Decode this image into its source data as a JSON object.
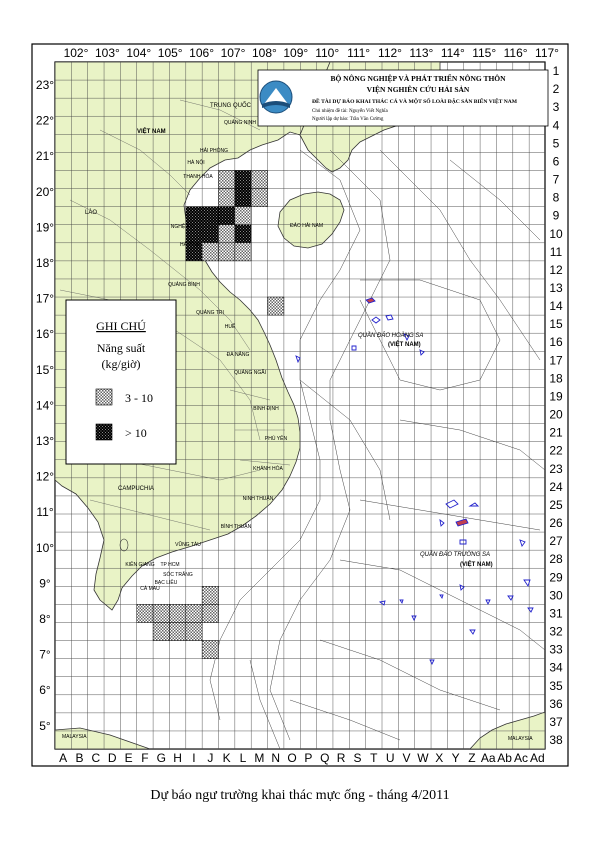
{
  "longitude_labels": [
    "102°",
    "103°",
    "104°",
    "105°",
    "106°",
    "107°",
    "108°",
    "109°",
    "110°",
    "111°",
    "112°",
    "113°",
    "114°",
    "115°",
    "116°",
    "117°"
  ],
  "latitude_labels": [
    "23°",
    "22°",
    "21°",
    "20°",
    "19°",
    "18°",
    "17°",
    "16°",
    "15°",
    "14°",
    "13°",
    "12°",
    "11°",
    "10°",
    "9°",
    "8°",
    "7°",
    "6°",
    "5°"
  ],
  "row_labels": [
    "1",
    "2",
    "3",
    "4",
    "5",
    "6",
    "7",
    "8",
    "9",
    "10",
    "11",
    "12",
    "13",
    "14",
    "15",
    "16",
    "17",
    "18",
    "19",
    "20",
    "21",
    "22",
    "23",
    "24",
    "25",
    "26",
    "27",
    "28",
    "29",
    "30",
    "31",
    "32",
    "33",
    "34",
    "35",
    "36",
    "37",
    "38"
  ],
  "column_labels": [
    "A",
    "B",
    "C",
    "D",
    "E",
    "F",
    "G",
    "H",
    "I",
    "J",
    "K",
    "L",
    "M",
    "N",
    "O",
    "P",
    "Q",
    "R",
    "S",
    "T",
    "U",
    "V",
    "W",
    "X",
    "Y",
    "Z",
    "Aa",
    "Ab",
    "Ac",
    "Ad"
  ],
  "header": {
    "ministry": "BỘ NÔNG NGHIỆP VÀ PHÁT TRIỂN NÔNG THÔN",
    "institute": "VIỆN NGHIÊN CỨU HẢI SẢN",
    "project": "ĐỀ TÀI DỰ BÁO KHAI THÁC CÁ VÀ MỘT SỐ LOÀI ĐẶC SẢN BIỂN VIỆT NAM",
    "chair": "Chủ nhiệm đề tài: Nguyễn Viết Nghĩa",
    "editor": "Người lập dự báo: Trần Văn Cường"
  },
  "legend": {
    "title": "GHI CHÚ",
    "subtitle_line1": "Năng suất",
    "subtitle_line2": "(kg/giờ)",
    "items": [
      {
        "label": "3 - 10",
        "level": "medium"
      },
      {
        "label": "> 10",
        "level": "high"
      }
    ]
  },
  "place_labels": {
    "china": "TRUNG QUỐC",
    "vietnam": "VIỆT NAM",
    "laos": "LÀO",
    "cambodia": "CAMPUCHIA",
    "hainan": "ĐẢO HẢI NAM",
    "paracels": "QUẦN ĐẢO HOÀNG SA",
    "paracels_country": "(VIỆT NAM)",
    "spratlys": "QUẦN ĐẢO TRƯỜNG SA",
    "spratlys_country": "(VIỆT NAM)",
    "malaysia_left": "MALAYSIA",
    "malaysia_right": "MALAYSIA"
  },
  "province_labels": [
    "HÀ NỘI",
    "THANH HÓA",
    "NGHỆ AN",
    "HÀ TĨNH",
    "QUẢNG BÌNH",
    "QUẢNG TRỊ",
    "HUẾ",
    "ĐÀ NẴNG",
    "QUẢNG NGÃI",
    "BÌNH ĐỊNH",
    "PHÚ YÊN",
    "KHÁNH HÒA",
    "NINH THUẬN",
    "BÌNH THUẬN",
    "VŨNG TÀU",
    "TP HCM",
    "KIÊN GIANG",
    "CÀ MAU",
    "BẠC LIÊU",
    "SÓC TRĂNG",
    "HẢI PHÒNG",
    "QUẢNG NINH"
  ],
  "forecast_cells": [
    {
      "col": "K",
      "row": 7,
      "level": "medium"
    },
    {
      "col": "L",
      "row": 7,
      "level": "high"
    },
    {
      "col": "M",
      "row": 7,
      "level": "medium"
    },
    {
      "col": "K",
      "row": 8,
      "level": "medium"
    },
    {
      "col": "L",
      "row": 8,
      "level": "high"
    },
    {
      "col": "M",
      "row": 8,
      "level": "medium"
    },
    {
      "col": "I",
      "row": 9,
      "level": "high"
    },
    {
      "col": "J",
      "row": 9,
      "level": "high"
    },
    {
      "col": "K",
      "row": 9,
      "level": "high"
    },
    {
      "col": "L",
      "row": 9,
      "level": "medium"
    },
    {
      "col": "I",
      "row": 10,
      "level": "high"
    },
    {
      "col": "J",
      "row": 10,
      "level": "high"
    },
    {
      "col": "K",
      "row": 10,
      "level": "medium"
    },
    {
      "col": "L",
      "row": 10,
      "level": "high"
    },
    {
      "col": "I",
      "row": 11,
      "level": "high"
    },
    {
      "col": "J",
      "row": 11,
      "level": "medium"
    },
    {
      "col": "K",
      "row": 11,
      "level": "medium"
    },
    {
      "col": "L",
      "row": 11,
      "level": "medium"
    },
    {
      "col": "N",
      "row": 14,
      "level": "medium"
    },
    {
      "col": "J",
      "row": 30,
      "level": "medium"
    },
    {
      "col": "F",
      "row": 31,
      "level": "medium"
    },
    {
      "col": "G",
      "row": 31,
      "level": "medium"
    },
    {
      "col": "H",
      "row": 31,
      "level": "medium"
    },
    {
      "col": "I",
      "row": 31,
      "level": "medium"
    },
    {
      "col": "J",
      "row": 31,
      "level": "medium"
    },
    {
      "col": "G",
      "row": 32,
      "level": "medium"
    },
    {
      "col": "H",
      "row": 32,
      "level": "medium"
    },
    {
      "col": "I",
      "row": 32,
      "level": "medium"
    },
    {
      "col": "J",
      "row": 33,
      "level": "medium"
    }
  ],
  "caption": "Dự báo ngư trường khai thác mực ống - tháng 4/2011",
  "colors": {
    "land": "#e9f3c6",
    "grid": "#333333",
    "frame": "#000000",
    "island_outline": "#2222cc",
    "island_fill": "#c04050"
  }
}
